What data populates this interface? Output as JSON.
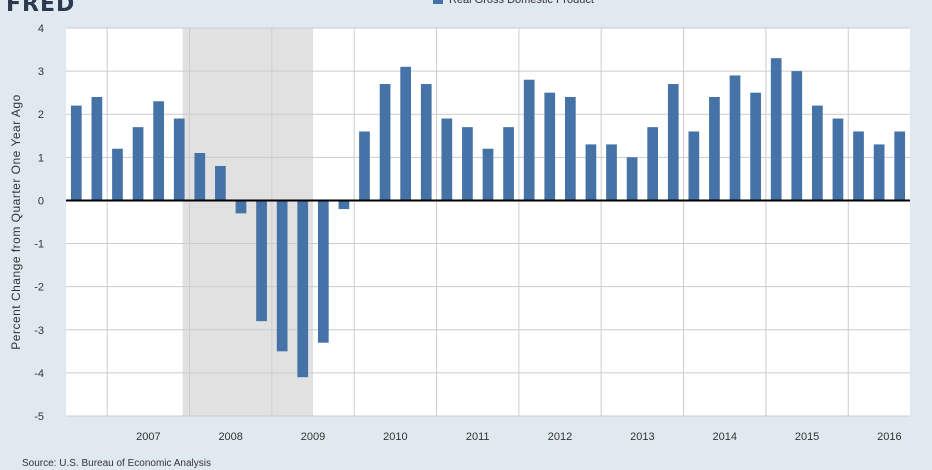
{
  "header": {
    "logo_text": "FRED"
  },
  "source": "Source: U.S. Bureau of Economic Analysis",
  "colors": {
    "bar": "#4572a7",
    "recession": "#e1e1e1",
    "plot_bg": "#ffffff",
    "page_bg": "#e1e9f0",
    "zero_line": "#000000"
  },
  "chart_data": {
    "type": "bar",
    "title": "",
    "ylabel": "Percent Change from Quarter One Year Ago",
    "xlabel": "",
    "ylim": [
      -5,
      4
    ],
    "yticks": [
      "-5",
      "-4",
      "-3",
      "-2",
      "-1",
      "0",
      "1",
      "2",
      "3",
      "4"
    ],
    "xticks": [
      "2007",
      "2008",
      "2009",
      "2010",
      "2011",
      "2012",
      "2013",
      "2014",
      "2015",
      "2016"
    ],
    "legend": {
      "position": "top-center",
      "entries": [
        "Real Gross Domestic Product"
      ]
    },
    "grid": true,
    "recession": {
      "start": "2007-12",
      "end": "2009-06"
    },
    "series": [
      {
        "name": "Real Gross Domestic Product",
        "categories": [
          "2006-Q3",
          "2006-Q4",
          "2007-Q1",
          "2007-Q2",
          "2007-Q3",
          "2007-Q4",
          "2008-Q1",
          "2008-Q2",
          "2008-Q3",
          "2008-Q4",
          "2009-Q1",
          "2009-Q2",
          "2009-Q3",
          "2009-Q4",
          "2010-Q1",
          "2010-Q2",
          "2010-Q3",
          "2010-Q4",
          "2011-Q1",
          "2011-Q2",
          "2011-Q3",
          "2011-Q4",
          "2012-Q1",
          "2012-Q2",
          "2012-Q3",
          "2012-Q4",
          "2013-Q1",
          "2013-Q2",
          "2013-Q3",
          "2013-Q4",
          "2014-Q1",
          "2014-Q2",
          "2014-Q3",
          "2014-Q4",
          "2015-Q1",
          "2015-Q2",
          "2015-Q3",
          "2015-Q4",
          "2016-Q1",
          "2016-Q2",
          "2016-Q3"
        ],
        "values": [
          2.2,
          2.4,
          1.2,
          1.7,
          2.3,
          1.9,
          1.1,
          0.8,
          -0.3,
          -2.8,
          -3.5,
          -4.1,
          -3.3,
          -0.2,
          1.6,
          2.7,
          3.1,
          2.7,
          1.9,
          1.7,
          1.2,
          1.7,
          2.8,
          2.5,
          2.4,
          1.3,
          1.3,
          1.0,
          1.7,
          2.7,
          1.6,
          2.4,
          2.9,
          2.5,
          3.3,
          3.0,
          2.2,
          1.9,
          1.6,
          1.3,
          1.6
        ]
      }
    ]
  }
}
